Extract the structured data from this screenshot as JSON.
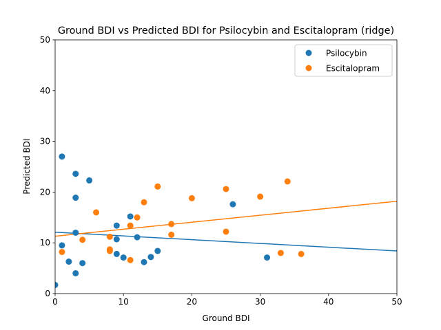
{
  "chart_data": {
    "type": "scatter",
    "title": "Ground BDI vs Predicted BDI for Psilocybin and Escitalopram (ridge)",
    "xlabel": "Ground BDI",
    "ylabel": "Predicted BDI",
    "xlim": [
      0,
      50
    ],
    "ylim": [
      0,
      50
    ],
    "xticks": [
      0,
      10,
      20,
      30,
      40,
      50
    ],
    "yticks": [
      0,
      10,
      20,
      30,
      40,
      50
    ],
    "grid": false,
    "legend_position": "top-right",
    "series": [
      {
        "name": "Psilocybin",
        "color": "#1f77b4",
        "points": [
          [
            0,
            1.7
          ],
          [
            1,
            27.0
          ],
          [
            1,
            9.5
          ],
          [
            2,
            6.3
          ],
          [
            3,
            23.6
          ],
          [
            3,
            18.9
          ],
          [
            3,
            12.0
          ],
          [
            3,
            4.0
          ],
          [
            4,
            6.0
          ],
          [
            5,
            22.3
          ],
          [
            9,
            13.4
          ],
          [
            9,
            10.7
          ],
          [
            9,
            7.8
          ],
          [
            10,
            7.1
          ],
          [
            11,
            15.2
          ],
          [
            12,
            11.1
          ],
          [
            13,
            6.2
          ],
          [
            14,
            7.2
          ],
          [
            15,
            8.4
          ],
          [
            26,
            17.6
          ],
          [
            31,
            7.1
          ]
        ],
        "fit_line": [
          [
            0,
            12.1
          ],
          [
            50,
            8.4
          ]
        ]
      },
      {
        "name": "Escitalopram",
        "color": "#ff7f0e",
        "points": [
          [
            1,
            8.2
          ],
          [
            4,
            10.6
          ],
          [
            6,
            16.0
          ],
          [
            8,
            11.2
          ],
          [
            8,
            8.7
          ],
          [
            8,
            8.4
          ],
          [
            11,
            13.4
          ],
          [
            11,
            6.6
          ],
          [
            12,
            15.0
          ],
          [
            13,
            18.0
          ],
          [
            15,
            21.1
          ],
          [
            17,
            13.7
          ],
          [
            17,
            11.6
          ],
          [
            20,
            18.8
          ],
          [
            25,
            20.6
          ],
          [
            25,
            12.2
          ],
          [
            30,
            19.1
          ],
          [
            33,
            8.0
          ],
          [
            34,
            22.1
          ],
          [
            36,
            7.8
          ]
        ],
        "fit_line": [
          [
            0,
            11.3
          ],
          [
            50,
            18.2
          ]
        ]
      }
    ]
  }
}
